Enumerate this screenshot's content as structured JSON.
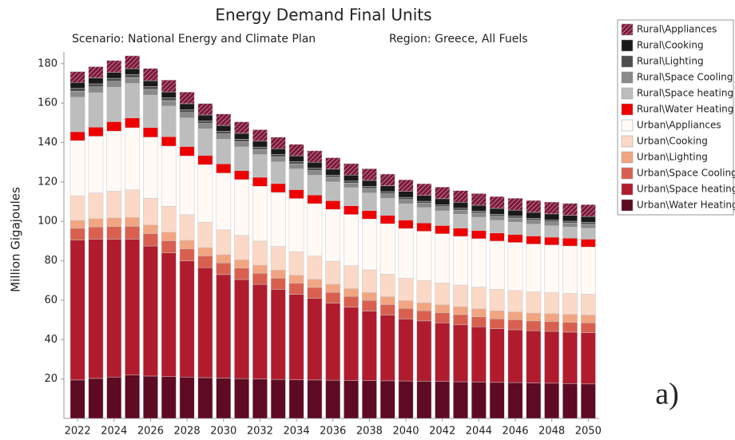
{
  "chart_data": {
    "type": "stacked_bar",
    "title": "Energy Demand Final Units",
    "subtitle": "Scenario: National Energy and Climate Plan",
    "region": "Region: Greece, All Fuels",
    "y_label": "Million Gigajoules",
    "annotation": "a)",
    "x": [
      2022,
      2023,
      2024,
      2025,
      2026,
      2027,
      2028,
      2029,
      2030,
      2031,
      2032,
      2033,
      2034,
      2035,
      2036,
      2037,
      2038,
      2039,
      2040,
      2041,
      2042,
      2043,
      2044,
      2045,
      2046,
      2047,
      2048,
      2049,
      2050
    ],
    "xlim": [
      2021.25,
      2050.6
    ],
    "xticks": [
      2022,
      2024,
      2026,
      2028,
      2030,
      2032,
      2034,
      2036,
      2038,
      2040,
      2042,
      2044,
      2046,
      2048,
      2050
    ],
    "ylim": [
      0,
      186
    ],
    "yticks": [
      20,
      40,
      60,
      80,
      100,
      120,
      140,
      160,
      180
    ],
    "series": [
      {
        "name": "Urban\\Water Heating",
        "color": "#5e0a22",
        "values": [
          19.5,
          20.3,
          21,
          22,
          21.5,
          21.2,
          21,
          20.7,
          20.5,
          20.2,
          20,
          19.8,
          19.6,
          19.5,
          19.4,
          19.3,
          19.2,
          19.1,
          19,
          18.9,
          18.8,
          18.6,
          18.5,
          18.3,
          18.2,
          18,
          17.9,
          17.7,
          17.5
        ]
      },
      {
        "name": "Urban\\Space heating",
        "color": "#b01c2e",
        "values": [
          71,
          70.7,
          70,
          69,
          66,
          62.8,
          59,
          55.8,
          52.5,
          50.3,
          48,
          45.7,
          43.4,
          41.5,
          39.1,
          37.2,
          35.3,
          33.4,
          31.5,
          30.6,
          29.7,
          28.9,
          28,
          27.2,
          26.8,
          26.5,
          26.3,
          26.1,
          26
        ]
      },
      {
        "name": "Urban\\Space Cooling",
        "color": "#d9604f",
        "values": [
          6,
          6.2,
          6.4,
          6.5,
          6.3,
          6.2,
          6.1,
          6,
          5.9,
          5.8,
          5.7,
          5.7,
          5.6,
          5.5,
          5.5,
          5.4,
          5.4,
          5.3,
          5.3,
          5.2,
          5.2,
          5.2,
          5.1,
          5.1,
          5.1,
          5,
          5,
          5,
          5
        ]
      },
      {
        "name": "Urban\\Lighting",
        "color": "#f2a581",
        "values": [
          4,
          4.2,
          4.4,
          4.5,
          4.4,
          4.3,
          4.3,
          4.2,
          4.2,
          4.2,
          4.1,
          4.1,
          4.1,
          4.1,
          4.1,
          4,
          4,
          4,
          4,
          4,
          4,
          4,
          4,
          4,
          4,
          4,
          4,
          4,
          4
        ]
      },
      {
        "name": "Urban\\Cooking",
        "color": "#fcd8c6",
        "values": [
          12.5,
          13,
          13.5,
          14,
          13.5,
          13.2,
          13,
          12.8,
          12.6,
          12.4,
          12.2,
          12,
          11.9,
          11.8,
          11.7,
          11.6,
          11.5,
          11.4,
          11.3,
          11.2,
          11.1,
          11,
          11,
          10.9,
          10.8,
          10.7,
          10.6,
          10.6,
          10.5
        ]
      },
      {
        "name": "Urban\\Appliances",
        "color": "#fffaf6",
        "values": [
          28,
          28.8,
          30.5,
          31.5,
          31,
          30.5,
          29.8,
          29.3,
          28.8,
          28.3,
          27.8,
          27.4,
          27,
          26.6,
          26.3,
          26,
          25.8,
          25.6,
          25.3,
          25.1,
          24.9,
          24.7,
          24.6,
          24.5,
          24.4,
          24.3,
          24.2,
          24.1,
          24
        ]
      },
      {
        "name": "Rural\\Water Heating",
        "color": "#ee0000",
        "values": [
          4.5,
          4.6,
          4.8,
          5,
          4.9,
          4.8,
          4.8,
          4.7,
          4.7,
          4.6,
          4.6,
          4.5,
          4.5,
          4.4,
          4.4,
          4.4,
          4.3,
          4.3,
          4.3,
          4.2,
          4.2,
          4.2,
          4.2,
          4.1,
          4.1,
          4.1,
          4,
          4,
          4
        ]
      },
      {
        "name": "Rural\\Space heating",
        "color": "#bdbdbd",
        "values": [
          17.5,
          17.5,
          17.5,
          17.5,
          16.5,
          15.5,
          14.5,
          13.5,
          12.5,
          12,
          11.5,
          11,
          10.5,
          10,
          9.5,
          9.2,
          8.9,
          8.6,
          8.2,
          7.8,
          7.4,
          7,
          6.7,
          6.4,
          6.2,
          6,
          5.8,
          5.6,
          5.5
        ]
      },
      {
        "name": "Rural\\Space Cooling",
        "color": "#8a8a8a",
        "values": [
          3,
          3,
          3,
          3,
          2.9,
          2.8,
          2.8,
          2.7,
          2.7,
          2.6,
          2.6,
          2.5,
          2.5,
          2.4,
          2.4,
          2.3,
          2.3,
          2.3,
          2.2,
          2.2,
          2.2,
          2.1,
          2.1,
          2.1,
          2.1,
          2,
          2,
          2,
          2
        ]
      },
      {
        "name": "Rural\\Lighting",
        "color": "#4d4d4d",
        "values": [
          1.5,
          1.5,
          1.5,
          1.5,
          1.4,
          1.4,
          1.4,
          1.3,
          1.3,
          1.3,
          1.2,
          1.2,
          1.2,
          1.2,
          1.1,
          1.1,
          1.1,
          1.1,
          1.1,
          1,
          1,
          1,
          1,
          1,
          1,
          1,
          1,
          1,
          1
        ]
      },
      {
        "name": "Rural\\Cooking",
        "color": "#1a1a1a",
        "values": [
          3,
          3,
          3,
          3,
          3,
          3,
          3,
          3,
          3,
          3,
          3,
          3,
          3,
          3,
          3,
          3,
          3,
          3,
          3,
          3,
          3,
          3,
          3,
          3,
          3,
          3,
          3,
          3,
          3
        ]
      },
      {
        "name": "Rural\\Appliances",
        "color": "#7b1838",
        "hatch": true,
        "values": [
          5.5,
          5.7,
          6,
          6.5,
          6.2,
          6,
          5.9,
          5.8,
          5.8,
          5.8,
          5.8,
          5.8,
          5.8,
          5.8,
          5.8,
          5.8,
          5.9,
          5.9,
          5.9,
          5.9,
          5.9,
          5.9,
          5.9,
          6,
          6,
          6,
          6,
          6,
          6
        ]
      }
    ]
  }
}
